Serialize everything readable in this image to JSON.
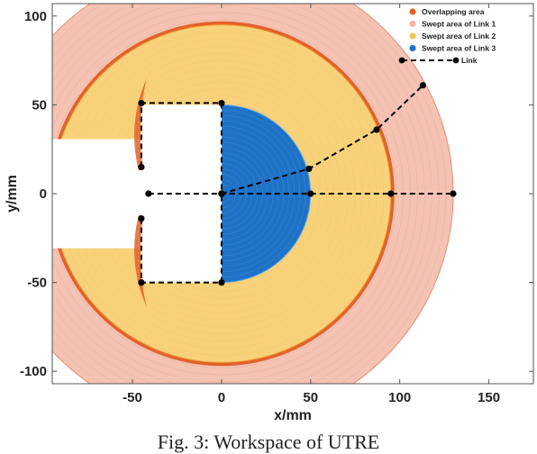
{
  "caption": "Fig. 3: Workspace of UTRE",
  "chart_data": {
    "type": "workspace-plot",
    "xlabel": "x/mm",
    "ylabel": "y/mm",
    "xlim": [
      -95,
      175
    ],
    "ylim": [
      -107,
      107
    ],
    "xticks": [
      -50,
      0,
      50,
      100,
      150
    ],
    "yticks": [
      -100,
      -50,
      0,
      50,
      100
    ],
    "xtick_labels": [
      "-50",
      "0",
      "50",
      "100",
      "150"
    ],
    "ytick_labels": [
      "-100",
      "-50",
      "0",
      "50",
      "100"
    ],
    "grid": false,
    "legend_position": "top-right",
    "legend": [
      {
        "label": "Overlapping area",
        "color": "#e2622b",
        "marker": "dot"
      },
      {
        "label": "Swept area of Link 1",
        "color": "#f2b6a3",
        "marker": "dot"
      },
      {
        "label": "Swept area of Link 2",
        "color": "#f6c35c",
        "marker": "dot"
      },
      {
        "label": "Swept area of Link 3",
        "color": "#1e73c7",
        "marker": "dot"
      },
      {
        "label": "Link",
        "color": "#000000",
        "marker": "dashed-line-dot"
      }
    ],
    "regions": {
      "link1_outer_radius": 130,
      "link1_center": [
        0,
        0
      ],
      "link2_outer_radius": 95,
      "link2_center": [
        0,
        0
      ],
      "link3_radius": 50,
      "link3_center": [
        0,
        0
      ],
      "base_x": -45,
      "base_half_height": 50,
      "colors": {
        "link1": "#f4c3b3",
        "link1_edge": "#e98d72",
        "link2": "#f8d27a",
        "link2_edge": "#f0a23b",
        "link3": "#1e73c7",
        "link3_edge": "#6aa8e0",
        "overlap": "#e2622b"
      }
    },
    "links": [
      {
        "points": [
          [
            -45,
            15
          ],
          [
            -45,
            51
          ],
          [
            0,
            51
          ],
          [
            0,
            0
          ]
        ]
      },
      {
        "points": [
          [
            -45,
            -14
          ],
          [
            -45,
            -50
          ],
          [
            0,
            -50
          ],
          [
            0,
            0
          ]
        ]
      },
      {
        "points": [
          [
            -41,
            0
          ],
          [
            0,
            0
          ],
          [
            50,
            0
          ],
          [
            95,
            0
          ],
          [
            130,
            0
          ]
        ]
      },
      {
        "points": [
          [
            0,
            0
          ],
          [
            49,
            14
          ],
          [
            87,
            36
          ],
          [
            113,
            61
          ]
        ]
      }
    ]
  }
}
